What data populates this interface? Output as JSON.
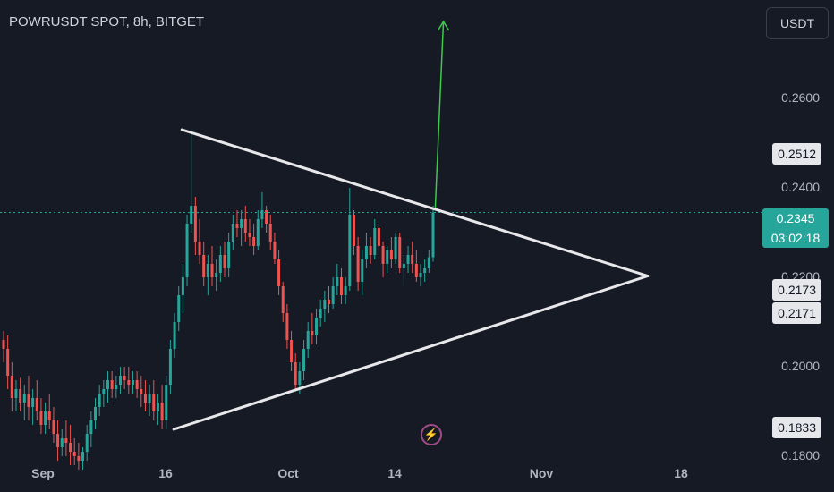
{
  "header": {
    "title": "POWRUSDT SPOT, 8h, BITGET",
    "currency_button": "USDT"
  },
  "colors": {
    "background": "#161a25",
    "up": "#26a69a",
    "down": "#ef5350",
    "pattern_lines": "#e8e8ea",
    "target_arrow": "#3fc94a",
    "price_line": "#26a69a"
  },
  "icons": {
    "flash": "lightning-bolt-icon"
  },
  "chart_data": {
    "type": "candlestick",
    "title": "POWRUSDT SPOT, 8h, BITGET",
    "x_axis_labels": [
      "Sep",
      "16",
      "Oct",
      "14",
      "Nov",
      "18"
    ],
    "y_axis_labels": [
      "0.2600",
      "0.2400",
      "0.2200",
      "0.2000",
      "0.1800"
    ],
    "ylim": [
      0.178,
      0.278
    ],
    "price_tags": [
      "0.2512",
      "0.2173",
      "0.2171",
      "0.1833"
    ],
    "current_price": {
      "price": "0.2345",
      "countdown": "03:02:18"
    },
    "triangle": {
      "apex": {
        "x": "2024-11-14",
        "y": 0.2203
      },
      "upper_start": {
        "x": "2024-09-18",
        "y": 0.253
      },
      "lower_start": {
        "x": "2024-09-17",
        "y": 0.186
      }
    },
    "target_arrow": {
      "from": {
        "x": "2024-10-19",
        "y": 0.2355
      },
      "to": {
        "x": "2024-10-20",
        "y": 0.2805
      }
    },
    "candles_ohlc": [
      [
        0.206,
        0.208,
        0.201,
        0.204
      ],
      [
        0.204,
        0.207,
        0.195,
        0.198
      ],
      [
        0.198,
        0.201,
        0.19,
        0.193
      ],
      [
        0.193,
        0.197,
        0.19,
        0.195
      ],
      [
        0.195,
        0.1975,
        0.19,
        0.192
      ],
      [
        0.192,
        0.196,
        0.188,
        0.194
      ],
      [
        0.194,
        0.198,
        0.188,
        0.191
      ],
      [
        0.191,
        0.195,
        0.187,
        0.193
      ],
      [
        0.193,
        0.197,
        0.188,
        0.19
      ],
      [
        0.19,
        0.193,
        0.185,
        0.187
      ],
      [
        0.187,
        0.192,
        0.185,
        0.19
      ],
      [
        0.19,
        0.194,
        0.186,
        0.188
      ],
      [
        0.188,
        0.191,
        0.183,
        0.185
      ],
      [
        0.185,
        0.188,
        0.179,
        0.182
      ],
      [
        0.182,
        0.186,
        0.18,
        0.184
      ],
      [
        0.184,
        0.188,
        0.18,
        0.183
      ],
      [
        0.183,
        0.187,
        0.178,
        0.181
      ],
      [
        0.181,
        0.184,
        0.178,
        0.18
      ],
      [
        0.18,
        0.183,
        0.177,
        0.179
      ],
      [
        0.179,
        0.182,
        0.177,
        0.181
      ],
      [
        0.181,
        0.187,
        0.179,
        0.185
      ],
      [
        0.185,
        0.19,
        0.182,
        0.188
      ],
      [
        0.188,
        0.193,
        0.186,
        0.191
      ],
      [
        0.191,
        0.196,
        0.189,
        0.194
      ],
      [
        0.194,
        0.197,
        0.191,
        0.195
      ],
      [
        0.195,
        0.199,
        0.192,
        0.197
      ],
      [
        0.197,
        0.199,
        0.193,
        0.195
      ],
      [
        0.195,
        0.198,
        0.193,
        0.196
      ],
      [
        0.196,
        0.2,
        0.194,
        0.198
      ],
      [
        0.198,
        0.2,
        0.195,
        0.197
      ],
      [
        0.197,
        0.2,
        0.194,
        0.196
      ],
      [
        0.196,
        0.199,
        0.194,
        0.197
      ],
      [
        0.197,
        0.199,
        0.193,
        0.195
      ],
      [
        0.195,
        0.198,
        0.191,
        0.194
      ],
      [
        0.194,
        0.197,
        0.19,
        0.192
      ],
      [
        0.192,
        0.196,
        0.189,
        0.194
      ],
      [
        0.194,
        0.197,
        0.188,
        0.19
      ],
      [
        0.19,
        0.194,
        0.187,
        0.192
      ],
      [
        0.192,
        0.196,
        0.186,
        0.188
      ],
      [
        0.188,
        0.198,
        0.186,
        0.196
      ],
      [
        0.196,
        0.206,
        0.194,
        0.204
      ],
      [
        0.204,
        0.212,
        0.202,
        0.21
      ],
      [
        0.21,
        0.218,
        0.208,
        0.216
      ],
      [
        0.216,
        0.223,
        0.212,
        0.22
      ],
      [
        0.22,
        0.234,
        0.218,
        0.232
      ],
      [
        0.232,
        0.253,
        0.23,
        0.236
      ],
      [
        0.236,
        0.238,
        0.225,
        0.228
      ],
      [
        0.228,
        0.233,
        0.223,
        0.225
      ],
      [
        0.225,
        0.228,
        0.218,
        0.22
      ],
      [
        0.22,
        0.225,
        0.216,
        0.223
      ],
      [
        0.223,
        0.227,
        0.218,
        0.22
      ],
      [
        0.22,
        0.224,
        0.217,
        0.221
      ],
      [
        0.221,
        0.227,
        0.219,
        0.225
      ],
      [
        0.225,
        0.228,
        0.22,
        0.222
      ],
      [
        0.222,
        0.23,
        0.22,
        0.228
      ],
      [
        0.228,
        0.234,
        0.226,
        0.232
      ],
      [
        0.232,
        0.235,
        0.229,
        0.231
      ],
      [
        0.231,
        0.235,
        0.227,
        0.233
      ],
      [
        0.233,
        0.236,
        0.228,
        0.23
      ],
      [
        0.23,
        0.233,
        0.227,
        0.229
      ],
      [
        0.229,
        0.232,
        0.225,
        0.227
      ],
      [
        0.227,
        0.235,
        0.226,
        0.233
      ],
      [
        0.233,
        0.239,
        0.231,
        0.235
      ],
      [
        0.235,
        0.236,
        0.23,
        0.232
      ],
      [
        0.232,
        0.234,
        0.226,
        0.228
      ],
      [
        0.228,
        0.23,
        0.223,
        0.224
      ],
      [
        0.224,
        0.226,
        0.216,
        0.218
      ],
      [
        0.218,
        0.219,
        0.21,
        0.212
      ],
      [
        0.212,
        0.214,
        0.204,
        0.206
      ],
      [
        0.206,
        0.208,
        0.199,
        0.201
      ],
      [
        0.201,
        0.203,
        0.195,
        0.196
      ],
      [
        0.196,
        0.201,
        0.194,
        0.199
      ],
      [
        0.199,
        0.206,
        0.197,
        0.204
      ],
      [
        0.204,
        0.21,
        0.202,
        0.208
      ],
      [
        0.208,
        0.212,
        0.205,
        0.207
      ],
      [
        0.207,
        0.213,
        0.205,
        0.211
      ],
      [
        0.211,
        0.215,
        0.209,
        0.213
      ],
      [
        0.213,
        0.217,
        0.21,
        0.215
      ],
      [
        0.215,
        0.218,
        0.212,
        0.214
      ],
      [
        0.214,
        0.22,
        0.213,
        0.218
      ],
      [
        0.218,
        0.223,
        0.216,
        0.22
      ],
      [
        0.22,
        0.222,
        0.214,
        0.216
      ],
      [
        0.216,
        0.22,
        0.214,
        0.218
      ],
      [
        0.218,
        0.24,
        0.217,
        0.234
      ],
      [
        0.234,
        0.235,
        0.225,
        0.227
      ],
      [
        0.227,
        0.229,
        0.217,
        0.219
      ],
      [
        0.219,
        0.226,
        0.216,
        0.224
      ],
      [
        0.224,
        0.23,
        0.222,
        0.227
      ],
      [
        0.227,
        0.229,
        0.223,
        0.225
      ],
      [
        0.225,
        0.233,
        0.224,
        0.231
      ],
      [
        0.231,
        0.232,
        0.225,
        0.227
      ],
      [
        0.227,
        0.228,
        0.22,
        0.223
      ],
      [
        0.223,
        0.227,
        0.221,
        0.226
      ],
      [
        0.226,
        0.229,
        0.222,
        0.224
      ],
      [
        0.224,
        0.23,
        0.223,
        0.229
      ],
      [
        0.229,
        0.23,
        0.221,
        0.222
      ],
      [
        0.222,
        0.225,
        0.218,
        0.223
      ],
      [
        0.223,
        0.227,
        0.221,
        0.225
      ],
      [
        0.225,
        0.228,
        0.221,
        0.223
      ],
      [
        0.223,
        0.226,
        0.219,
        0.22
      ],
      [
        0.22,
        0.223,
        0.218,
        0.221
      ],
      [
        0.221,
        0.224,
        0.219,
        0.222
      ],
      [
        0.222,
        0.226,
        0.221,
        0.2245
      ],
      [
        0.2245,
        0.236,
        0.2235,
        0.2345
      ]
    ]
  }
}
